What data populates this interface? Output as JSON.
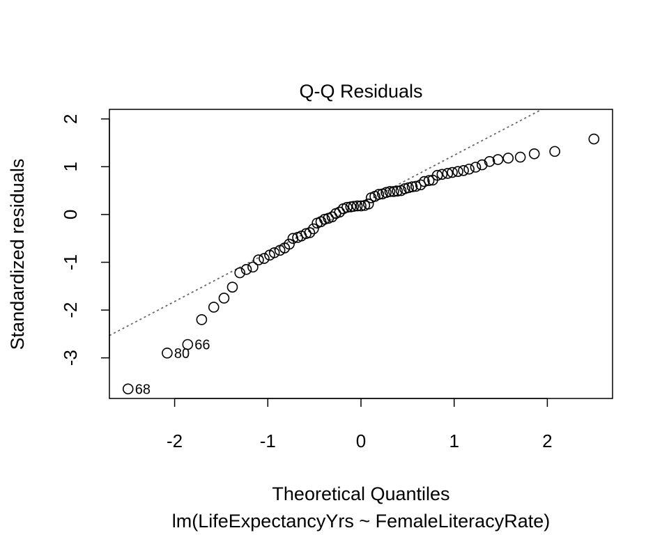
{
  "chart_data": {
    "type": "scatter",
    "title": "Q-Q Residuals",
    "xlabel": "Theoretical Quantiles",
    "subtitle": "lm(LifeExpectancyYrs ~ FemaleLiteracyRate)",
    "ylabel": "Standardized residuals",
    "xlim": [
      -2.7,
      2.7
    ],
    "ylim": [
      -3.85,
      2.2
    ],
    "x_ticks": [
      -2,
      -1,
      0,
      1,
      2
    ],
    "x_tick_labels": [
      "-2",
      "-1",
      "0",
      "1",
      "2"
    ],
    "y_ticks": [
      -3,
      -2,
      -1,
      0,
      1,
      2
    ],
    "y_tick_labels": [
      "-3",
      "-2",
      "-1",
      "0",
      "1",
      "2"
    ],
    "grid": false,
    "reference_line": {
      "style": "dotted",
      "color": "#666666",
      "slope": 1.02,
      "intercept": 0.22
    },
    "points": [
      {
        "x": -2.5,
        "y": -3.65,
        "label": "68"
      },
      {
        "x": -2.08,
        "y": -2.9,
        "label": "80"
      },
      {
        "x": -1.86,
        "y": -2.72,
        "label": "66"
      },
      {
        "x": -1.71,
        "y": -2.2
      },
      {
        "x": -1.58,
        "y": -1.94
      },
      {
        "x": -1.47,
        "y": -1.75
      },
      {
        "x": -1.38,
        "y": -1.52
      },
      {
        "x": -1.3,
        "y": -1.22
      },
      {
        "x": -1.23,
        "y": -1.15
      },
      {
        "x": -1.16,
        "y": -1.1
      },
      {
        "x": -1.1,
        "y": -0.95
      },
      {
        "x": -1.04,
        "y": -0.92
      },
      {
        "x": -0.98,
        "y": -0.85
      },
      {
        "x": -0.93,
        "y": -0.8
      },
      {
        "x": -0.87,
        "y": -0.75
      },
      {
        "x": -0.82,
        "y": -0.7
      },
      {
        "x": -0.77,
        "y": -0.62
      },
      {
        "x": -0.73,
        "y": -0.5
      },
      {
        "x": -0.68,
        "y": -0.48
      },
      {
        "x": -0.64,
        "y": -0.45
      },
      {
        "x": -0.59,
        "y": -0.4
      },
      {
        "x": -0.55,
        "y": -0.38
      },
      {
        "x": -0.51,
        "y": -0.3
      },
      {
        "x": -0.47,
        "y": -0.18
      },
      {
        "x": -0.43,
        "y": -0.15
      },
      {
        "x": -0.39,
        "y": -0.1
      },
      {
        "x": -0.35,
        "y": -0.08
      },
      {
        "x": -0.31,
        "y": -0.05
      },
      {
        "x": -0.27,
        "y": 0.02
      },
      {
        "x": -0.23,
        "y": 0.05
      },
      {
        "x": -0.19,
        "y": 0.12
      },
      {
        "x": -0.15,
        "y": 0.15
      },
      {
        "x": -0.11,
        "y": 0.16
      },
      {
        "x": -0.08,
        "y": 0.17
      },
      {
        "x": -0.04,
        "y": 0.18
      },
      {
        "x": 0.0,
        "y": 0.18
      },
      {
        "x": 0.04,
        "y": 0.19
      },
      {
        "x": 0.08,
        "y": 0.22
      },
      {
        "x": 0.11,
        "y": 0.35
      },
      {
        "x": 0.15,
        "y": 0.38
      },
      {
        "x": 0.19,
        "y": 0.42
      },
      {
        "x": 0.23,
        "y": 0.43
      },
      {
        "x": 0.27,
        "y": 0.46
      },
      {
        "x": 0.31,
        "y": 0.48
      },
      {
        "x": 0.35,
        "y": 0.48
      },
      {
        "x": 0.39,
        "y": 0.49
      },
      {
        "x": 0.43,
        "y": 0.5
      },
      {
        "x": 0.47,
        "y": 0.54
      },
      {
        "x": 0.51,
        "y": 0.56
      },
      {
        "x": 0.55,
        "y": 0.58
      },
      {
        "x": 0.59,
        "y": 0.59
      },
      {
        "x": 0.64,
        "y": 0.62
      },
      {
        "x": 0.68,
        "y": 0.69
      },
      {
        "x": 0.73,
        "y": 0.71
      },
      {
        "x": 0.77,
        "y": 0.72
      },
      {
        "x": 0.82,
        "y": 0.82
      },
      {
        "x": 0.87,
        "y": 0.84
      },
      {
        "x": 0.93,
        "y": 0.86
      },
      {
        "x": 0.98,
        "y": 0.88
      },
      {
        "x": 1.04,
        "y": 0.9
      },
      {
        "x": 1.1,
        "y": 0.92
      },
      {
        "x": 1.16,
        "y": 0.95
      },
      {
        "x": 1.23,
        "y": 0.99
      },
      {
        "x": 1.3,
        "y": 1.04
      },
      {
        "x": 1.38,
        "y": 1.11
      },
      {
        "x": 1.47,
        "y": 1.15
      },
      {
        "x": 1.58,
        "y": 1.18
      },
      {
        "x": 1.71,
        "y": 1.2
      },
      {
        "x": 1.86,
        "y": 1.27
      },
      {
        "x": 2.08,
        "y": 1.32
      },
      {
        "x": 2.5,
        "y": 1.58
      }
    ]
  }
}
